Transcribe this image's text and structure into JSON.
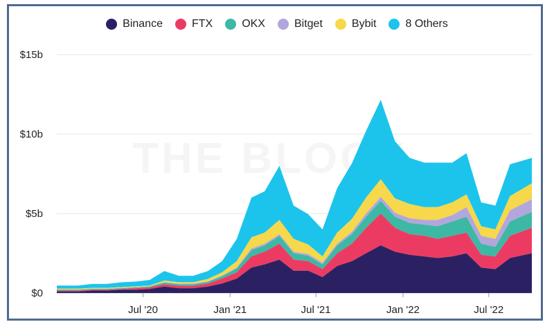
{
  "chart_data": {
    "type": "area",
    "stacked": true,
    "title": "",
    "xlabel": "",
    "ylabel": "",
    "x_range": [
      "2020-01-01",
      "2022-09-30"
    ],
    "ylim": [
      0,
      15
    ],
    "y_unit": "billions USD",
    "y_ticks": [
      {
        "value": 0,
        "label": "$0"
      },
      {
        "value": 5,
        "label": "$5b"
      },
      {
        "value": 10,
        "label": "$10b"
      },
      {
        "value": 15,
        "label": "$15b"
      }
    ],
    "x_ticks": [
      {
        "date": "2020-07-01",
        "label": "Jul '20"
      },
      {
        "date": "2021-01-01",
        "label": "Jan '21"
      },
      {
        "date": "2021-07-01",
        "label": "Jul '21"
      },
      {
        "date": "2022-01-01",
        "label": "Jan '22"
      },
      {
        "date": "2022-07-01",
        "label": "Jul '22"
      }
    ],
    "grid": true,
    "legend_position": "top-center",
    "watermark": "THE BLOCK",
    "x": [
      "2020-01",
      "2020-02",
      "2020-03",
      "2020-04",
      "2020-05",
      "2020-06",
      "2020-07",
      "2020-08",
      "2020-09",
      "2020-10",
      "2020-11",
      "2020-12",
      "2021-01",
      "2021-02",
      "2021-03",
      "2021-04",
      "2021-05",
      "2021-06",
      "2021-07",
      "2021-08",
      "2021-09",
      "2021-10",
      "2021-11",
      "2021-12",
      "2022-01",
      "2022-02",
      "2022-03",
      "2022-04",
      "2022-05",
      "2022-06",
      "2022-07",
      "2022-08",
      "2022-09"
    ],
    "series": [
      {
        "name": "Binance",
        "color": "#2b2162",
        "values": [
          0.1,
          0.1,
          0.15,
          0.15,
          0.2,
          0.2,
          0.25,
          0.4,
          0.3,
          0.3,
          0.4,
          0.6,
          0.9,
          1.6,
          1.8,
          2.1,
          1.4,
          1.4,
          1.0,
          1.7,
          2.0,
          2.5,
          3.0,
          2.6,
          2.4,
          2.3,
          2.2,
          2.3,
          2.5,
          1.6,
          1.5,
          2.2,
          2.5
        ]
      },
      {
        "name": "FTX",
        "color": "#ec3b62",
        "values": [
          0.05,
          0.05,
          0.05,
          0.05,
          0.05,
          0.1,
          0.1,
          0.15,
          0.15,
          0.15,
          0.2,
          0.3,
          0.4,
          0.7,
          0.8,
          1.0,
          0.7,
          0.6,
          0.5,
          0.8,
          1.1,
          1.6,
          2.0,
          1.5,
          1.3,
          1.3,
          1.2,
          1.3,
          1.3,
          0.8,
          0.8,
          1.4,
          1.6
        ]
      },
      {
        "name": "OKX",
        "color": "#3db8a4",
        "values": [
          0.05,
          0.05,
          0.05,
          0.05,
          0.05,
          0.05,
          0.05,
          0.1,
          0.1,
          0.1,
          0.1,
          0.15,
          0.25,
          0.4,
          0.4,
          0.5,
          0.4,
          0.35,
          0.3,
          0.5,
          0.6,
          0.7,
          0.8,
          0.7,
          0.7,
          0.7,
          0.8,
          0.9,
          1.0,
          0.7,
          0.6,
          0.9,
          1.0
        ]
      },
      {
        "name": "Bitget",
        "color": "#b3a6dc",
        "values": [
          0.02,
          0.02,
          0.02,
          0.02,
          0.02,
          0.02,
          0.02,
          0.03,
          0.03,
          0.03,
          0.03,
          0.05,
          0.05,
          0.1,
          0.1,
          0.1,
          0.1,
          0.1,
          0.1,
          0.1,
          0.15,
          0.2,
          0.25,
          0.25,
          0.3,
          0.3,
          0.4,
          0.4,
          0.6,
          0.5,
          0.5,
          0.7,
          0.8
        ]
      },
      {
        "name": "Bybit",
        "color": "#f6d84a",
        "values": [
          0.05,
          0.05,
          0.05,
          0.05,
          0.05,
          0.05,
          0.05,
          0.1,
          0.1,
          0.1,
          0.15,
          0.2,
          0.4,
          0.7,
          0.7,
          0.9,
          0.8,
          0.6,
          0.4,
          0.7,
          0.8,
          1.0,
          1.1,
          0.9,
          0.9,
          0.8,
          0.8,
          0.8,
          0.8,
          0.6,
          0.6,
          0.9,
          1.0
        ]
      },
      {
        "name": "8 Others",
        "color": "#1cc4ec",
        "values": [
          0.2,
          0.2,
          0.25,
          0.25,
          0.3,
          0.3,
          0.35,
          0.6,
          0.4,
          0.4,
          0.5,
          0.7,
          1.4,
          2.5,
          2.6,
          3.4,
          2.1,
          1.9,
          1.7,
          2.8,
          3.5,
          4.2,
          5.0,
          3.6,
          2.9,
          2.8,
          2.8,
          2.5,
          2.6,
          1.5,
          1.5,
          2.0,
          1.6
        ]
      }
    ]
  }
}
